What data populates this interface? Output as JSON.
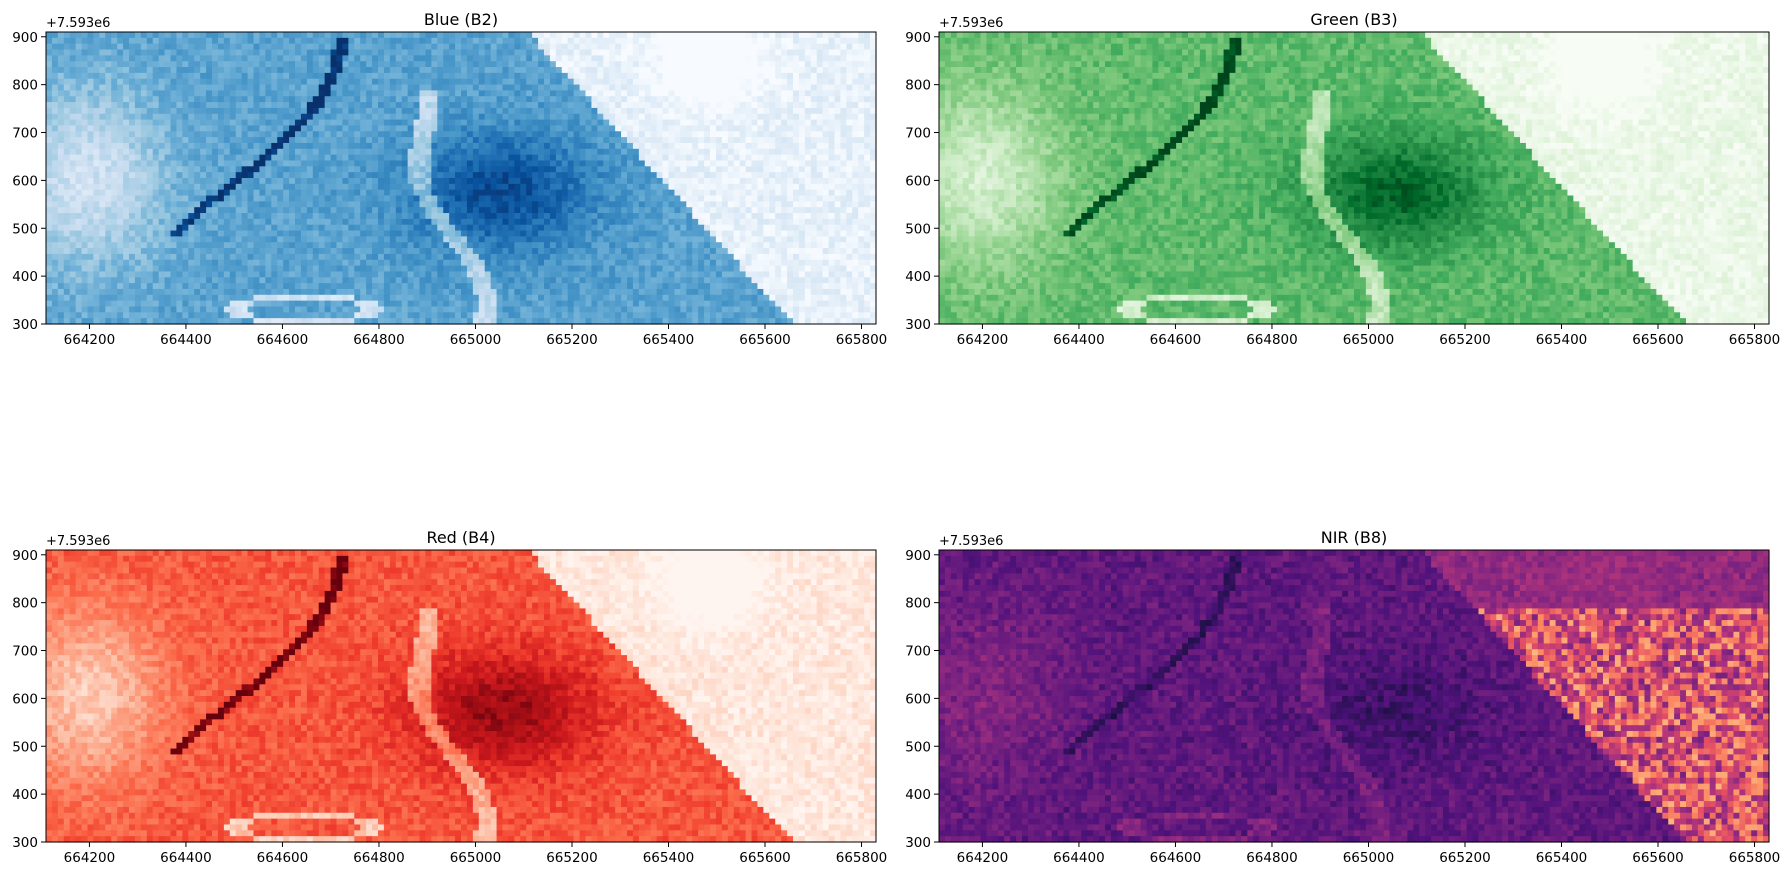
{
  "chart_data": [
    {
      "type": "heatmap",
      "title": "Blue (B2)",
      "colormap": "Blues",
      "offset_label": "+7.593e6",
      "xlim": [
        664110,
        665830
      ],
      "ylim": [
        300,
        910
      ],
      "xticks": [
        664200,
        664400,
        664600,
        664800,
        665000,
        665200,
        665400,
        665600,
        665800
      ],
      "yticks": [
        300,
        400,
        500,
        600,
        700,
        800,
        900
      ],
      "xtick_labels": [
        "664200",
        "664400",
        "664600",
        "664800",
        "665000",
        "665200",
        "665400",
        "665600",
        "665800"
      ],
      "ytick_labels": [
        "300",
        "400",
        "500",
        "600",
        "700",
        "800",
        "900"
      ],
      "colors": [
        "#f7fbff",
        "#deebf7",
        "#c6dbef",
        "#9ecae1",
        "#6baed6",
        "#4292c6",
        "#2171b5",
        "#08519c",
        "#08306b"
      ]
    },
    {
      "type": "heatmap",
      "title": "Green (B3)",
      "colormap": "Greens",
      "offset_label": "+7.593e6",
      "xlim": [
        664110,
        665830
      ],
      "ylim": [
        300,
        910
      ],
      "xticks": [
        664200,
        664400,
        664600,
        664800,
        665000,
        665200,
        665400,
        665600,
        665800
      ],
      "yticks": [
        300,
        400,
        500,
        600,
        700,
        800,
        900
      ],
      "xtick_labels": [
        "664200",
        "664400",
        "664600",
        "664800",
        "665000",
        "665200",
        "665400",
        "665600",
        "665800"
      ],
      "ytick_labels": [
        "300",
        "400",
        "500",
        "600",
        "700",
        "800",
        "900"
      ],
      "colors": [
        "#f7fcf5",
        "#e5f5e0",
        "#c7e9c0",
        "#a1d99b",
        "#74c476",
        "#41ab5d",
        "#238b45",
        "#006d2c",
        "#00441b"
      ]
    },
    {
      "type": "heatmap",
      "title": "Red (B4)",
      "colormap": "Reds",
      "offset_label": "+7.593e6",
      "xlim": [
        664110,
        665830
      ],
      "ylim": [
        300,
        910
      ],
      "xticks": [
        664200,
        664400,
        664600,
        664800,
        665000,
        665200,
        665400,
        665600,
        665800
      ],
      "yticks": [
        300,
        400,
        500,
        600,
        700,
        800,
        900
      ],
      "xtick_labels": [
        "664200",
        "664400",
        "664600",
        "664800",
        "665000",
        "665200",
        "665400",
        "665600",
        "665800"
      ],
      "ytick_labels": [
        "300",
        "400",
        "500",
        "600",
        "700",
        "800",
        "900"
      ],
      "colors": [
        "#fff5f0",
        "#fee0d2",
        "#fcbba1",
        "#fc9272",
        "#fb6a4a",
        "#ef3b2c",
        "#cb181d",
        "#a50f15",
        "#67000d"
      ]
    },
    {
      "type": "heatmap",
      "title": "NIR (B8)",
      "colormap": "magma",
      "offset_label": "+7.593e6",
      "xlim": [
        664110,
        665830
      ],
      "ylim": [
        300,
        910
      ],
      "xticks": [
        664200,
        664400,
        664600,
        664800,
        665000,
        665200,
        665400,
        665600,
        665800
      ],
      "yticks": [
        300,
        400,
        500,
        600,
        700,
        800,
        900
      ],
      "xtick_labels": [
        "664200",
        "664400",
        "664600",
        "664800",
        "665000",
        "665200",
        "665400",
        "665600",
        "665800"
      ],
      "ytick_labels": [
        "300",
        "400",
        "500",
        "600",
        "700",
        "800",
        "900"
      ],
      "colors": [
        "#000004",
        "#1c1044",
        "#4f127b",
        "#812581",
        "#b5367a",
        "#e55064",
        "#fb8761",
        "#fec287",
        "#fcfdbf"
      ]
    }
  ]
}
